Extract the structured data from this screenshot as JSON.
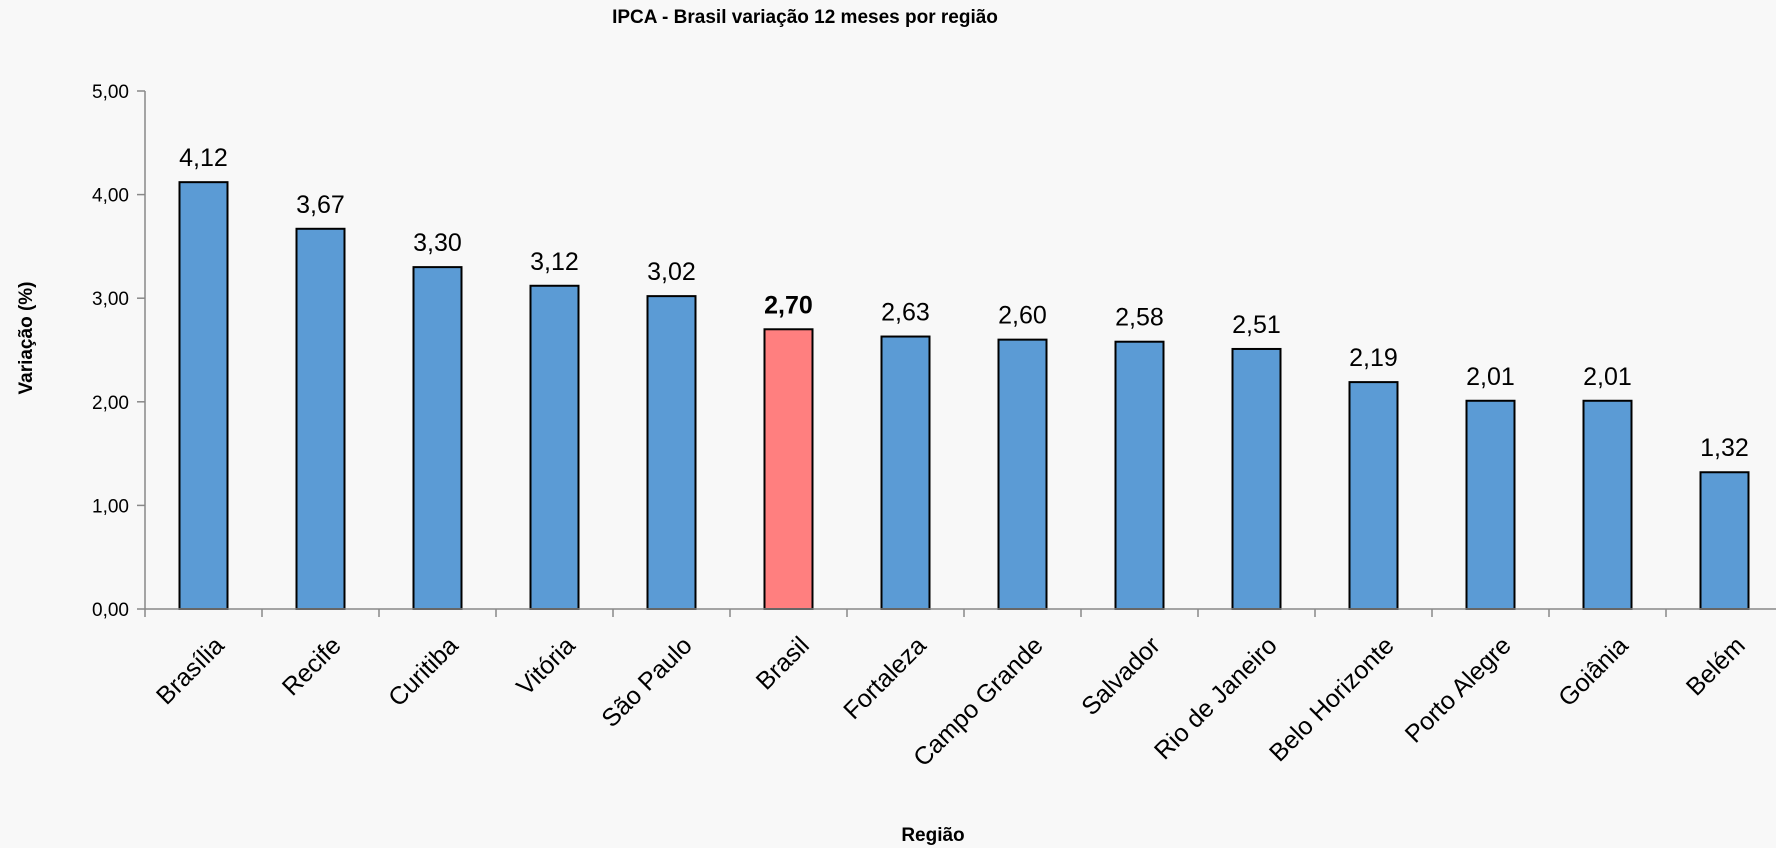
{
  "chart_data": {
    "type": "bar",
    "title": "IPCA - Brasil variação 12 meses por região",
    "xlabel": "Região",
    "ylabel": "Variação (%)",
    "ylim": [
      0,
      5
    ],
    "yticks": [
      "0,00",
      "1,00",
      "2,00",
      "3,00",
      "4,00",
      "5,00"
    ],
    "categories": [
      "Brasília",
      "Recife",
      "Curitiba",
      "Vitória",
      "São Paulo",
      "Brasil",
      "Fortaleza",
      "Campo Grande",
      "Salvador",
      "Rio de Janeiro",
      "Belo Horizonte",
      "Porto Alegre",
      "Goiânia",
      "Belém"
    ],
    "values": [
      4.12,
      3.67,
      3.3,
      3.12,
      3.02,
      2.7,
      2.63,
      2.6,
      2.58,
      2.51,
      2.19,
      2.01,
      2.01,
      1.32
    ],
    "value_labels": [
      "4,12",
      "3,67",
      "3,30",
      "3,12",
      "3,02",
      "2,70",
      "2,63",
      "2,60",
      "2,58",
      "2,51",
      "2,19",
      "2,01",
      "2,01",
      "1,32"
    ],
    "highlight_category": "Brasil",
    "colors": {
      "bar": "#5b9bd5",
      "highlight": "#ff7f7f"
    },
    "grid": false,
    "legend": "none"
  }
}
